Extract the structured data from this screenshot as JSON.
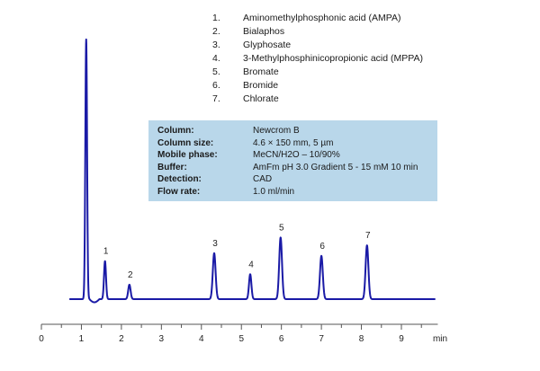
{
  "legend": [
    {
      "num": "1.",
      "name": "Aminomethylphosphonic acid (AMPA)"
    },
    {
      "num": "2.",
      "name": "Bialaphos"
    },
    {
      "num": "3.",
      "name": "Glyphosate"
    },
    {
      "num": "4.",
      "name": "3-Methylphosphinicopropionic acid (MPPA)"
    },
    {
      "num": "5.",
      "name": "Bromate"
    },
    {
      "num": "6.",
      "name": "Bromide"
    },
    {
      "num": "7.",
      "name": "Chlorate"
    }
  ],
  "conditions": [
    {
      "key": "Column:",
      "value": "Newcrom B"
    },
    {
      "key": "Column size:",
      "value": "4.6 × 150 mm, 5 µm"
    },
    {
      "key": "Mobile phase:",
      "value": "MeCN/H2O – 10/90%"
    },
    {
      "key": "Buffer:",
      "value": "AmFm pH 3.0 Gradient  5 - 15 mM 10 min"
    },
    {
      "key": "Detection:",
      "value": "CAD"
    },
    {
      "key": "Flow rate:",
      "value": "1.0 ml/min"
    }
  ],
  "colors": {
    "trace": "#1a1aa6",
    "box": "#b9d7ea",
    "axis": "#555555"
  },
  "chart_data": {
    "type": "line",
    "xlabel": "min",
    "ylabel": "",
    "xlim": [
      0,
      10
    ],
    "xticks": [
      0,
      1,
      2,
      3,
      4,
      5,
      6,
      7,
      8,
      9
    ],
    "grid": false,
    "baseline": 0,
    "ylim": [
      -2,
      100
    ],
    "peaks": [
      {
        "label": "",
        "t": 1.12,
        "height": 99,
        "width": 0.022
      },
      {
        "label": "1",
        "t": 1.59,
        "height": 14.5,
        "width": 0.025
      },
      {
        "label": "2",
        "t": 2.2,
        "height": 5.5,
        "width": 0.03
      },
      {
        "label": "3",
        "t": 4.32,
        "height": 17.5,
        "width": 0.035
      },
      {
        "label": "4",
        "t": 5.22,
        "height": 9.5,
        "width": 0.03
      },
      {
        "label": "5",
        "t": 5.98,
        "height": 23.5,
        "width": 0.035
      },
      {
        "label": "6",
        "t": 7.0,
        "height": 16.5,
        "width": 0.035
      },
      {
        "label": "7",
        "t": 8.14,
        "height": 20.5,
        "width": 0.035
      }
    ]
  }
}
